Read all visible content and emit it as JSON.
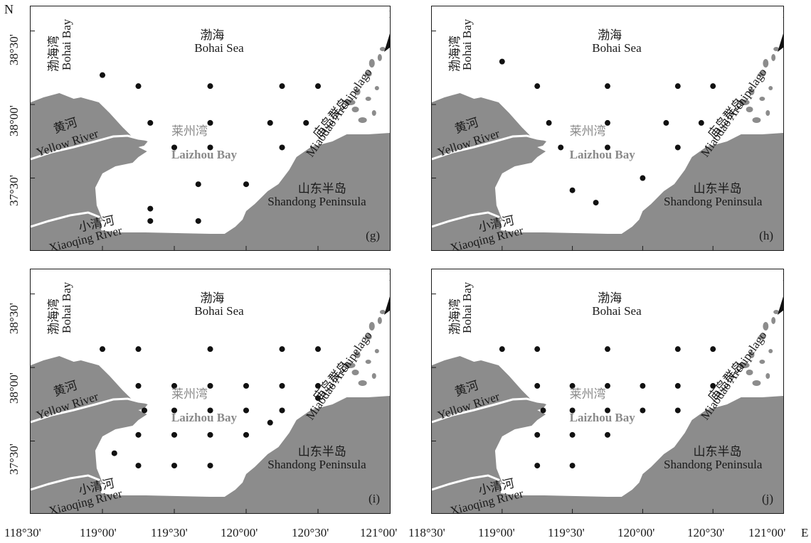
{
  "axis": {
    "north_label": "N",
    "east_label": "E",
    "y_ticks": [
      "38°30'",
      "38°00'",
      "37°30'"
    ],
    "x_ticks": [
      "118°30'",
      "119°00'",
      "119°30'",
      "120°00'",
      "120°30'",
      "121°00'"
    ]
  },
  "map_labels": {
    "bohai_bay_cn": "渤海湾",
    "bohai_bay_en": "Bohai Bay",
    "bohai_sea_cn": "渤海",
    "bohai_sea_en": "Bohai Sea",
    "yellow_river_cn": "黄河",
    "yellow_river_en": "Yellow River",
    "laizhou_bay_cn": "莱州湾",
    "laizhou_bay_en": "Laizhou Bay",
    "miaodao_cn": "庙岛群岛",
    "miaodao_en": "Miaodao Archipelago",
    "shandong_cn": "山东半岛",
    "shandong_en": "Shandong Peninsula",
    "xiaoqing_cn": "小清河",
    "xiaoqing_en": "Xiaoqing River",
    "compass_letter": "N"
  },
  "colors": {
    "land": "#8c8c8c",
    "river": "#ffffff",
    "station": "#111111"
  },
  "panels": [
    {
      "tag": "(g)",
      "stations": [
        {
          "lon": 119.0,
          "lat": 38.2
        },
        {
          "lon": 119.25,
          "lat": 38.125
        },
        {
          "lon": 119.75,
          "lat": 38.125
        },
        {
          "lon": 120.25,
          "lat": 38.125
        },
        {
          "lon": 120.5,
          "lat": 38.125
        },
        {
          "lon": 119.333,
          "lat": 37.875
        },
        {
          "lon": 119.75,
          "lat": 37.875
        },
        {
          "lon": 120.167,
          "lat": 37.875
        },
        {
          "lon": 120.417,
          "lat": 37.875
        },
        {
          "lon": 119.5,
          "lat": 37.708
        },
        {
          "lon": 119.75,
          "lat": 37.708
        },
        {
          "lon": 120.25,
          "lat": 37.708
        },
        {
          "lon": 119.667,
          "lat": 37.458
        },
        {
          "lon": 120.0,
          "lat": 37.458
        },
        {
          "lon": 119.333,
          "lat": 37.292
        },
        {
          "lon": 119.333,
          "lat": 37.208
        },
        {
          "lon": 119.667,
          "lat": 37.208
        }
      ]
    },
    {
      "tag": "(h)",
      "stations": [
        {
          "lon": 119.0,
          "lat": 38.292
        },
        {
          "lon": 119.25,
          "lat": 38.125
        },
        {
          "lon": 119.75,
          "lat": 38.125
        },
        {
          "lon": 120.25,
          "lat": 38.125
        },
        {
          "lon": 120.5,
          "lat": 38.125
        },
        {
          "lon": 119.333,
          "lat": 37.875
        },
        {
          "lon": 119.75,
          "lat": 37.875
        },
        {
          "lon": 120.167,
          "lat": 37.875
        },
        {
          "lon": 120.417,
          "lat": 37.875
        },
        {
          "lon": 119.417,
          "lat": 37.708
        },
        {
          "lon": 119.75,
          "lat": 37.708
        },
        {
          "lon": 120.25,
          "lat": 37.708
        },
        {
          "lon": 120.0,
          "lat": 37.5
        },
        {
          "lon": 119.5,
          "lat": 37.417
        },
        {
          "lon": 119.667,
          "lat": 37.333
        }
      ]
    },
    {
      "tag": "(i)",
      "stations": [
        {
          "lon": 119.0,
          "lat": 38.125
        },
        {
          "lon": 119.25,
          "lat": 38.125
        },
        {
          "lon": 119.75,
          "lat": 38.125
        },
        {
          "lon": 120.25,
          "lat": 38.125
        },
        {
          "lon": 120.5,
          "lat": 38.125
        },
        {
          "lon": 119.25,
          "lat": 37.875
        },
        {
          "lon": 119.5,
          "lat": 37.875
        },
        {
          "lon": 119.75,
          "lat": 37.875
        },
        {
          "lon": 120.0,
          "lat": 37.875
        },
        {
          "lon": 120.25,
          "lat": 37.875
        },
        {
          "lon": 120.5,
          "lat": 37.875
        },
        {
          "lon": 120.5,
          "lat": 37.792
        },
        {
          "lon": 119.292,
          "lat": 37.708
        },
        {
          "lon": 119.5,
          "lat": 37.708
        },
        {
          "lon": 119.75,
          "lat": 37.708
        },
        {
          "lon": 120.0,
          "lat": 37.708
        },
        {
          "lon": 120.25,
          "lat": 37.708
        },
        {
          "lon": 120.167,
          "lat": 37.625
        },
        {
          "lon": 119.25,
          "lat": 37.542
        },
        {
          "lon": 119.5,
          "lat": 37.542
        },
        {
          "lon": 119.75,
          "lat": 37.542
        },
        {
          "lon": 120.0,
          "lat": 37.542
        },
        {
          "lon": 119.083,
          "lat": 37.417
        },
        {
          "lon": 119.25,
          "lat": 37.333
        },
        {
          "lon": 119.5,
          "lat": 37.333
        },
        {
          "lon": 119.75,
          "lat": 37.333
        }
      ]
    },
    {
      "tag": "(j)",
      "stations": [
        {
          "lon": 119.0,
          "lat": 38.125
        },
        {
          "lon": 119.25,
          "lat": 38.125
        },
        {
          "lon": 119.75,
          "lat": 38.125
        },
        {
          "lon": 120.25,
          "lat": 38.125
        },
        {
          "lon": 120.5,
          "lat": 38.125
        },
        {
          "lon": 119.25,
          "lat": 37.875
        },
        {
          "lon": 119.5,
          "lat": 37.875
        },
        {
          "lon": 119.75,
          "lat": 37.875
        },
        {
          "lon": 120.0,
          "lat": 37.875
        },
        {
          "lon": 120.25,
          "lat": 37.875
        },
        {
          "lon": 120.5,
          "lat": 37.875
        },
        {
          "lon": 119.292,
          "lat": 37.708
        },
        {
          "lon": 119.5,
          "lat": 37.708
        },
        {
          "lon": 119.75,
          "lat": 37.708
        },
        {
          "lon": 120.0,
          "lat": 37.708
        },
        {
          "lon": 120.25,
          "lat": 37.708
        },
        {
          "lon": 119.25,
          "lat": 37.542
        },
        {
          "lon": 119.5,
          "lat": 37.542
        },
        {
          "lon": 119.75,
          "lat": 37.542
        },
        {
          "lon": 119.25,
          "lat": 37.333
        },
        {
          "lon": 119.5,
          "lat": 37.333
        }
      ]
    }
  ]
}
